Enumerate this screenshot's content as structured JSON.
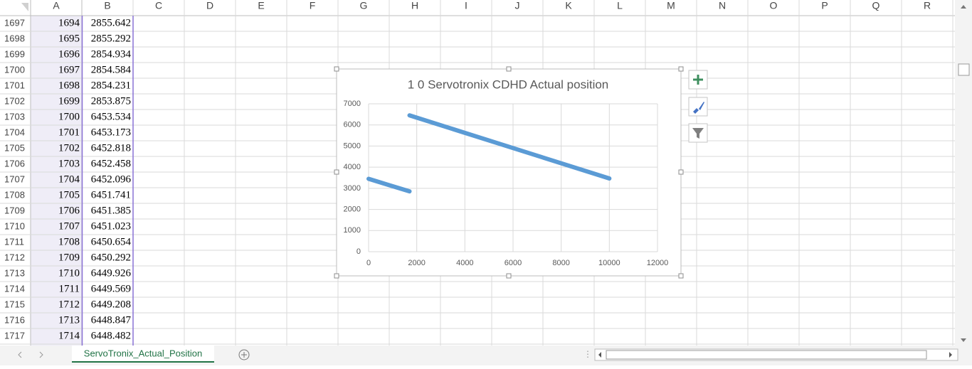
{
  "sheet": {
    "columns": [
      "A",
      "B",
      "C",
      "D",
      "E",
      "F",
      "G",
      "H",
      "I",
      "J",
      "K",
      "L",
      "M",
      "N",
      "O",
      "P",
      "Q",
      "R"
    ],
    "rows": [
      [
        1697,
        1694,
        2855.642
      ],
      [
        1698,
        1695,
        2855.292
      ],
      [
        1699,
        1696,
        2854.934
      ],
      [
        1700,
        1697,
        2854.584
      ],
      [
        1701,
        1698,
        2854.231
      ],
      [
        1702,
        1699,
        2853.875
      ],
      [
        1703,
        1700,
        6453.534
      ],
      [
        1704,
        1701,
        6453.173
      ],
      [
        1705,
        1702,
        6452.818
      ],
      [
        1706,
        1703,
        6452.458
      ],
      [
        1707,
        1704,
        6452.096
      ],
      [
        1708,
        1705,
        6451.741
      ],
      [
        1709,
        1706,
        6451.385
      ],
      [
        1710,
        1707,
        6451.023
      ],
      [
        1711,
        1708,
        6450.654
      ],
      [
        1712,
        1709,
        6450.292
      ],
      [
        1713,
        1710,
        6449.926
      ],
      [
        1714,
        1711,
        6449.569
      ],
      [
        1715,
        1712,
        6449.208
      ],
      [
        1716,
        1713,
        6448.847
      ],
      [
        1717,
        1714,
        6448.482
      ]
    ],
    "tab": "ServoTronix_Actual_Position"
  },
  "chart_data": {
    "type": "line",
    "title": "1 0 Servotronix CDHD Actual position",
    "x": [
      0,
      850,
      1700,
      null,
      1700,
      4000,
      7000,
      10000
    ],
    "values": [
      3450,
      3152,
      2855,
      null,
      6453,
      5625,
      4545,
      3465
    ],
    "color": "#5b9bd5",
    "xlim": [
      0,
      12000
    ],
    "xticks": [
      0,
      2000,
      4000,
      6000,
      8000,
      10000,
      12000
    ],
    "ylim": [
      0,
      7000
    ],
    "yticks": [
      0,
      1000,
      2000,
      3000,
      4000,
      5000,
      6000,
      7000
    ],
    "grid": true
  }
}
